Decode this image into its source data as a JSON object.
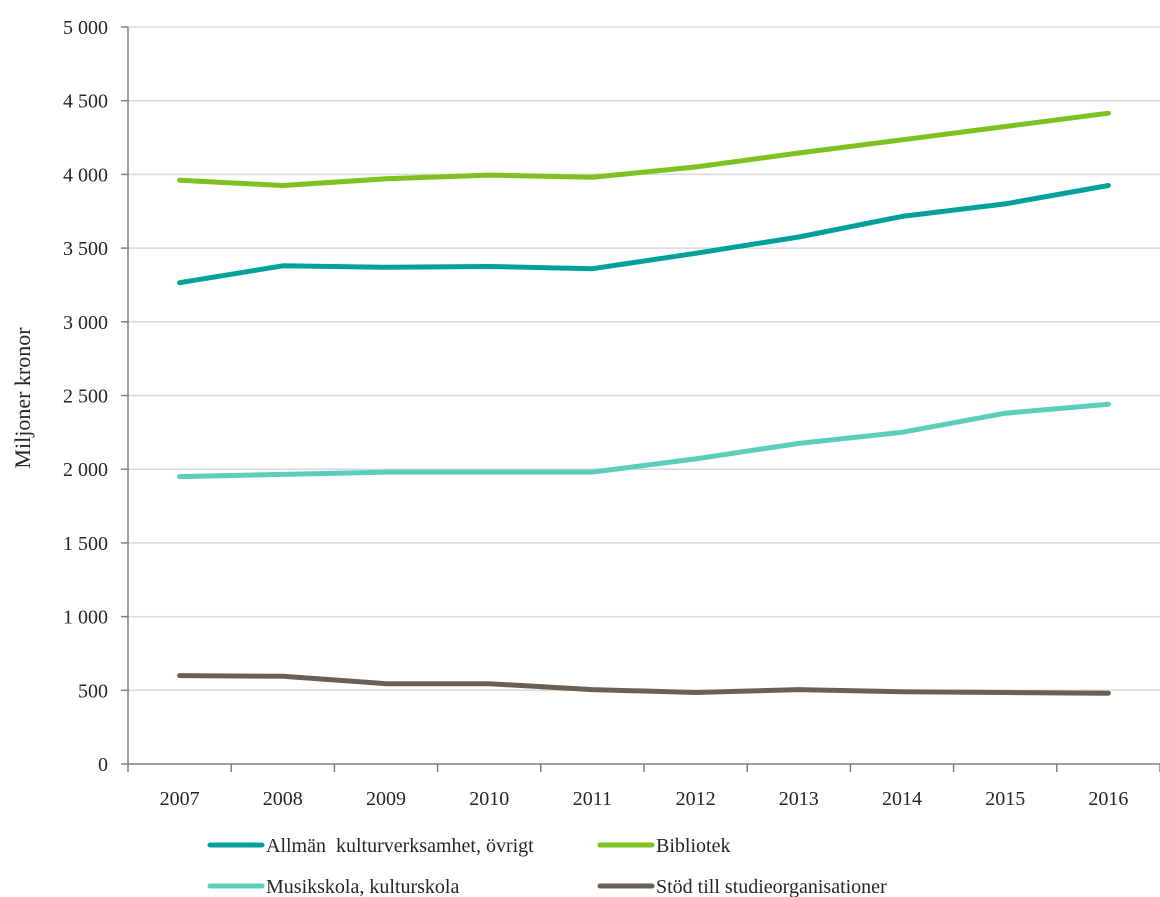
{
  "chart_data": {
    "type": "line",
    "title": "",
    "xlabel": "",
    "ylabel": "Miljoner kronor",
    "ylim": [
      0,
      5000
    ],
    "y_ticks": [
      0,
      500,
      1000,
      1500,
      2000,
      2500,
      3000,
      3500,
      4000,
      4500,
      5000
    ],
    "y_tick_labels": [
      "0",
      "500",
      "1 000",
      "1 500",
      "2 000",
      "2 500",
      "3 000",
      "3 500",
      "4 000",
      "4 500",
      "5 000"
    ],
    "categories": [
      "2007",
      "2008",
      "2009",
      "2010",
      "2011",
      "2012",
      "2013",
      "2014",
      "2015",
      "2016"
    ],
    "grid": "horizontal",
    "legend_position": "bottom",
    "series": [
      {
        "name": "Allmän  kulturverksamhet, övrigt",
        "color": "#00A19A",
        "values": [
          3265,
          3380,
          3370,
          3375,
          3360,
          3465,
          3575,
          3715,
          3800,
          3925
        ]
      },
      {
        "name": "Bibliotek",
        "color": "#7DC21E",
        "values": [
          3960,
          3925,
          3970,
          3995,
          3980,
          4050,
          4145,
          4235,
          4325,
          4415
        ]
      },
      {
        "name": "Musikskola, kulturskola",
        "color": "#5ACDBB",
        "values": [
          1950,
          1965,
          1980,
          1980,
          1980,
          2070,
          2175,
          2250,
          2380,
          2440
        ]
      },
      {
        "name": "Stöd till studieorganisationer",
        "color": "#6B5E55",
        "values": [
          600,
          595,
          545,
          545,
          505,
          485,
          505,
          490,
          485,
          480
        ]
      }
    ]
  }
}
